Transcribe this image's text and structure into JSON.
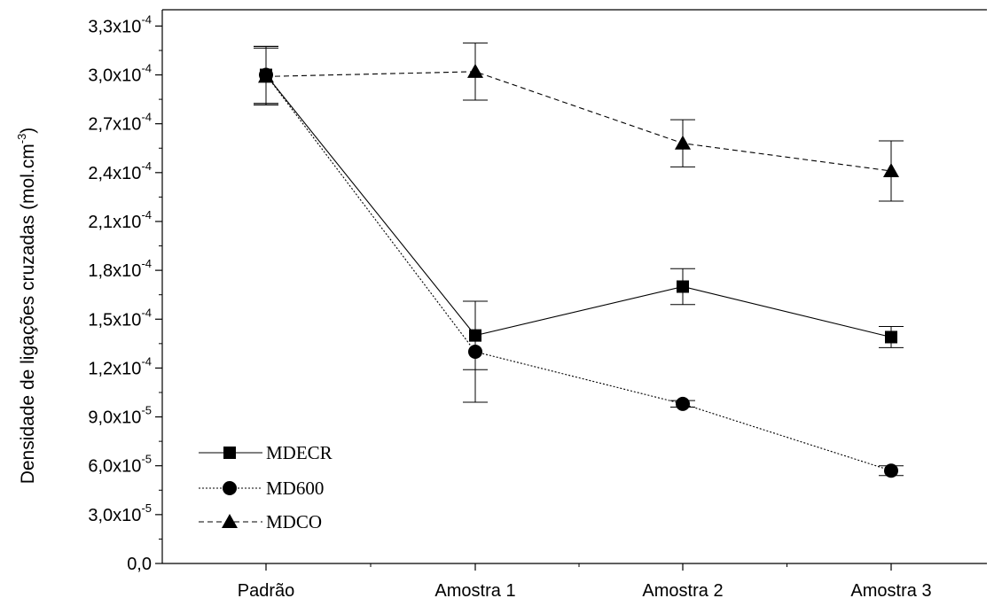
{
  "chart_data": {
    "type": "line",
    "categories": [
      "Padrão",
      "Amostra 1",
      "Amostra 2",
      "Amostra 3"
    ],
    "ylabel": "Densidade de ligações cruzadas (mol.cm",
    "ylabel_exp": "-3",
    "ylabel_close": ")",
    "ylim": [
      0,
      0.00034
    ],
    "yticks": [
      {
        "value": 0,
        "mantissa": "0,0",
        "exp": ""
      },
      {
        "value": 3e-05,
        "mantissa": "3,0x10",
        "exp": "-5"
      },
      {
        "value": 6e-05,
        "mantissa": "6,0x10",
        "exp": "-5"
      },
      {
        "value": 9e-05,
        "mantissa": "9,0x10",
        "exp": "-5"
      },
      {
        "value": 0.00012,
        "mantissa": "1,2x10",
        "exp": "-4"
      },
      {
        "value": 0.00015,
        "mantissa": "1,5x10",
        "exp": "-4"
      },
      {
        "value": 0.00018,
        "mantissa": "1,8x10",
        "exp": "-4"
      },
      {
        "value": 0.00021,
        "mantissa": "2,1x10",
        "exp": "-4"
      },
      {
        "value": 0.00024,
        "mantissa": "2,4x10",
        "exp": "-4"
      },
      {
        "value": 0.00027,
        "mantissa": "2,7x10",
        "exp": "-4"
      },
      {
        "value": 0.0003,
        "mantissa": "3,0x10",
        "exp": "-4"
      },
      {
        "value": 0.00033,
        "mantissa": "3,3x10",
        "exp": "-4"
      }
    ],
    "grid": false,
    "legend_position": "bottom-left",
    "series": [
      {
        "name": "MDECR",
        "marker": "square",
        "line": "solid",
        "values": [
          0.0003,
          0.00014,
          0.00017,
          0.000139
        ],
        "errors": [
          1.75e-05,
          2.1e-05,
          1.1e-05,
          6.5e-06
        ]
      },
      {
        "name": "MD600",
        "marker": "circle",
        "line": "dotted",
        "values": [
          0.0003,
          0.00013,
          9.8e-05,
          5.7e-05
        ],
        "errors": [
          1.75e-05,
          3.1e-05,
          2e-06,
          3e-06
        ]
      },
      {
        "name": "MDCO",
        "marker": "triangle",
        "line": "dashed",
        "values": [
          0.000299,
          0.000302,
          0.000258,
          0.000241
        ],
        "errors": [
          1.75e-05,
          1.75e-05,
          1.45e-05,
          1.85e-05
        ]
      }
    ]
  }
}
